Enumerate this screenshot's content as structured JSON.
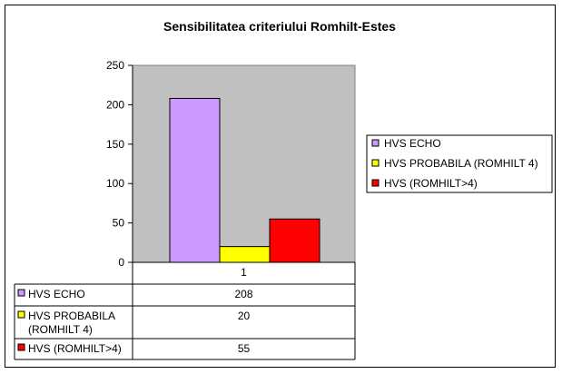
{
  "chart_data": {
    "type": "bar",
    "title": "Sensibilitatea criteriului Romhilt-Estes",
    "categories": [
      "1"
    ],
    "series": [
      {
        "name": "HVS ECHO",
        "values": [
          208
        ],
        "color": "#cc99ff"
      },
      {
        "name": "HVS PROBABILA (ROMHILT 4)",
        "values": [
          20
        ],
        "color": "#ffff00"
      },
      {
        "name": "HVS (ROMHILT>4)",
        "values": [
          55
        ],
        "color": "#ff0000"
      }
    ],
    "table_labels": [
      [
        "HVS ECHO"
      ],
      [
        "HVS PROBABILA",
        "(ROMHILT 4)"
      ],
      [
        "HVS (ROMHILT>4)"
      ]
    ],
    "ylim": [
      0,
      250
    ],
    "yticks": [
      0,
      50,
      100,
      150,
      200,
      250
    ],
    "grid": false,
    "plot_background": "#c0c0c0",
    "legend_position": "right",
    "data_table": true
  }
}
